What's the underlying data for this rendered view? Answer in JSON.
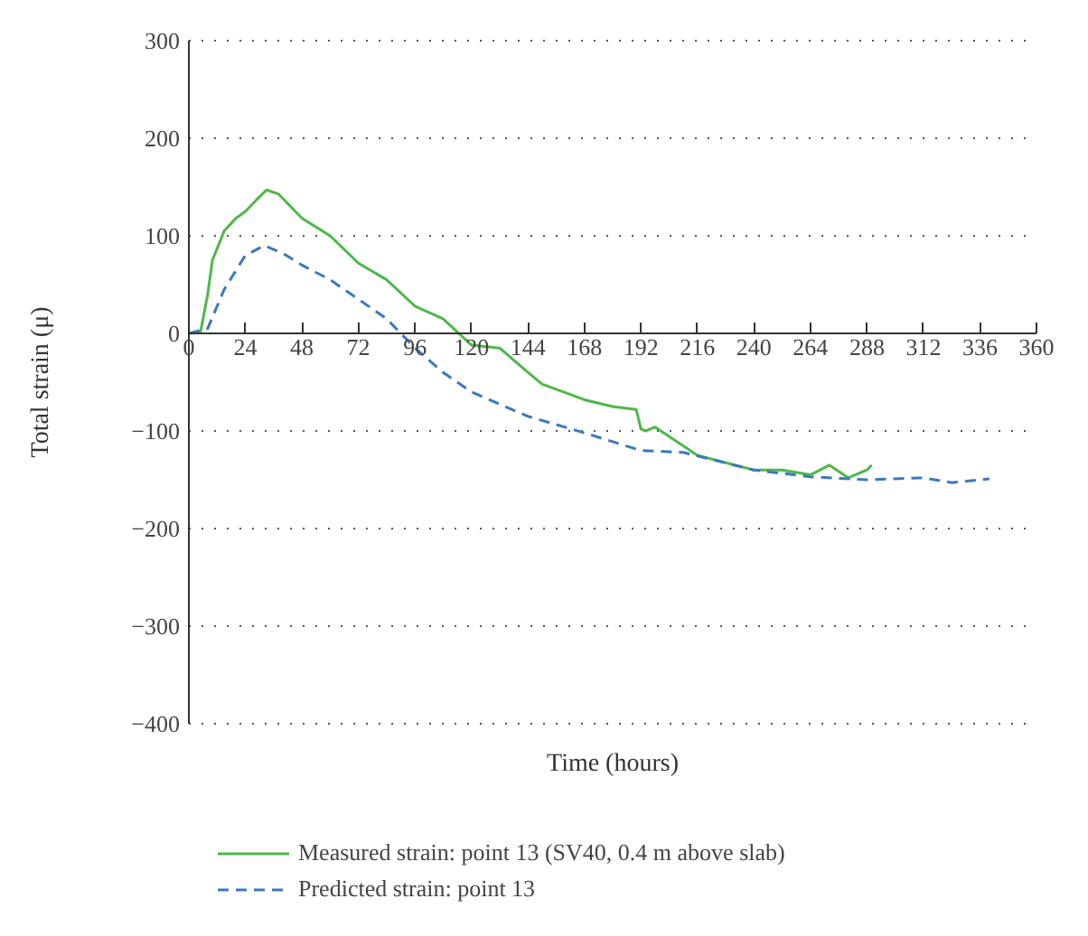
{
  "chart_data": {
    "type": "line",
    "xlabel": "Time (hours)",
    "ylabel": "Total strain (μ)",
    "xlim": [
      0,
      360
    ],
    "xticks": [
      0,
      24,
      48,
      72,
      96,
      120,
      144,
      168,
      192,
      216,
      240,
      264,
      288,
      312,
      336,
      360
    ],
    "ylim": [
      -400,
      300
    ],
    "yticks": [
      -400,
      -300,
      -200,
      -100,
      0,
      100,
      200,
      300
    ],
    "grid": "y",
    "legend": "bottom",
    "series": [
      {
        "name": "Measured strain: point 13 (SV40, 0.4 m above slab)",
        "color": "#4db848",
        "line_style": "solid",
        "x": [
          0,
          5,
          8,
          10,
          15,
          20,
          24,
          30,
          33,
          38,
          48,
          60,
          72,
          84,
          96,
          108,
          120,
          132,
          144,
          150,
          168,
          180,
          190,
          192,
          194,
          198,
          216,
          240,
          252,
          264,
          272,
          280,
          288,
          290
        ],
        "values": [
          0,
          2,
          40,
          75,
          105,
          118,
          125,
          140,
          147,
          143,
          118,
          100,
          72,
          55,
          28,
          15,
          -12,
          -15,
          -40,
          -52,
          -68,
          -75,
          -78,
          -98,
          -100,
          -96,
          -125,
          -140,
          -140,
          -145,
          -135,
          -148,
          -140,
          -135
        ]
      },
      {
        "name": "Predicted strain: point 13",
        "color": "#3a78c2",
        "line_style": "dashed",
        "x": [
          0,
          8,
          15,
          24,
          32,
          40,
          48,
          60,
          72,
          84,
          96,
          108,
          120,
          144,
          168,
          192,
          210,
          240,
          264,
          288,
          312,
          324,
          336,
          340
        ],
        "values": [
          0,
          5,
          45,
          80,
          90,
          82,
          70,
          55,
          35,
          15,
          -15,
          -40,
          -60,
          -85,
          -102,
          -120,
          -122,
          -140,
          -147,
          -150,
          -148,
          -153,
          -150,
          -149
        ]
      }
    ]
  }
}
